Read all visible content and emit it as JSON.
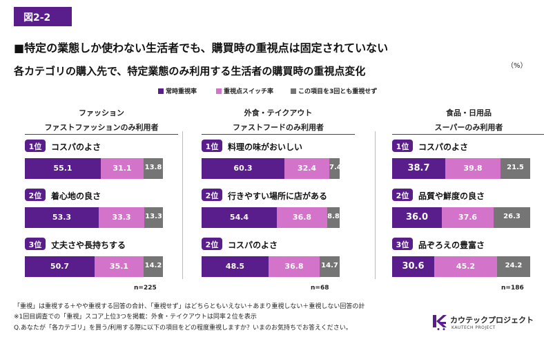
{
  "figure_label": "図2-2",
  "headline": "■特定の業態しか使わない生活者でも、購買時の重視点は固定されていない",
  "subtitle": "各カテゴリの購入先で、特定業態のみ利用する生活者の購買時の重視点変化",
  "unit": "（%）",
  "colors": {
    "primary": "#5a1d8c",
    "switch": "#d373c9",
    "none": "#757575"
  },
  "chart_data": {
    "type": "bar",
    "stacked": true,
    "orientation": "horizontal",
    "xlim": [
      0,
      100
    ],
    "legend": [
      "常時重視率",
      "重視点スイッチ率",
      "この項目を3回とも重視せず"
    ],
    "legend_position": "top",
    "panels": [
      {
        "category": "ファッション",
        "segment": "ファストファッションのみ利用者",
        "n": "n=225",
        "items": [
          {
            "rank": "1位",
            "label": "コスパのよさ",
            "values": [
              55.1,
              31.1,
              13.8
            ]
          },
          {
            "rank": "2位",
            "label": "着心地の良さ",
            "values": [
              53.3,
              33.3,
              13.3
            ]
          },
          {
            "rank": "3位",
            "label": "丈夫さや長持ちする",
            "values": [
              50.7,
              35.1,
              14.2
            ]
          }
        ]
      },
      {
        "category": "外食・テイクアウト",
        "segment": "ファストフードのみ利用者",
        "n": "n=68",
        "items": [
          {
            "rank": "1位",
            "label": "料理の味がおいしい",
            "values": [
              60.3,
              32.4,
              7.4
            ]
          },
          {
            "rank": "2位",
            "label": "行きやすい場所に店がある",
            "values": [
              54.4,
              36.8,
              8.8
            ]
          },
          {
            "rank": "2位",
            "label": "コスパのよさ",
            "values": [
              48.5,
              36.8,
              14.7
            ]
          }
        ]
      },
      {
        "category": "食品・日用品",
        "segment": "スーパーのみ利用者",
        "n": "n=186",
        "items": [
          {
            "rank": "1位",
            "label": "コスパのよさ",
            "values": [
              38.7,
              39.8,
              21.5
            ]
          },
          {
            "rank": "2位",
            "label": "品質や鮮度の良さ",
            "values": [
              36.0,
              37.6,
              26.3
            ]
          },
          {
            "rank": "3位",
            "label": "品ぞろえの豊富さ",
            "values": [
              30.6,
              45.2,
              24.2
            ]
          }
        ]
      }
    ]
  },
  "notes": [
    "「重視」は重視する＋やや重視する回答の合計、「重視せず」はどちらともいえない＋あまり重視しない＋重視しない回答の計",
    "※1回目調査での「重視」スコア上位3つを掲載：外食・テイクアウトは同率２位を表示",
    "Q.あなたが「各カテゴリ」を買う/利用する際に以下の項目をどの程度重視しますか？いまのお気持ちでお答えください。"
  ],
  "logo": {
    "name": "カウテックプロジェクト",
    "sub": "KAUTECH PROJECT"
  }
}
